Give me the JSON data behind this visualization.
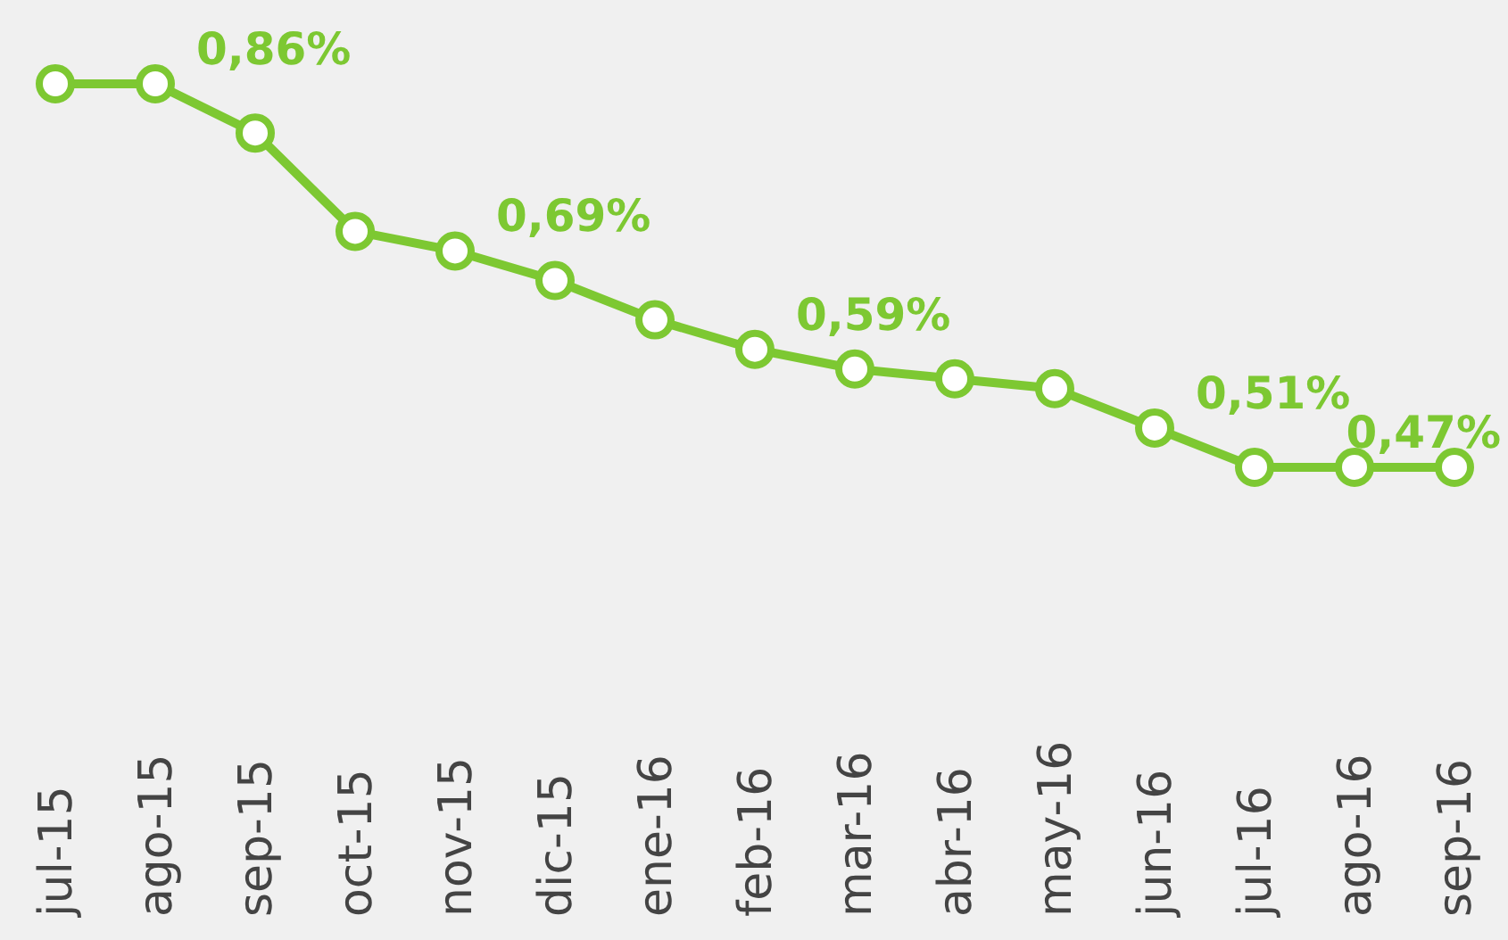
{
  "chart_data": {
    "type": "line",
    "categories": [
      "jul-15",
      "ago-15",
      "sep-15",
      "oct-15",
      "nov-15",
      "dic-15",
      "ene-16",
      "feb-16",
      "mar-16",
      "abr-16",
      "may-16",
      "jun-16",
      "jul-16",
      "ago-16",
      "sep-16"
    ],
    "series": [
      {
        "color": "#7dc832",
        "values": [
          0.86,
          0.86,
          0.81,
          0.71,
          0.69,
          0.66,
          0.62,
          0.59,
          0.57,
          0.56,
          0.55,
          0.51,
          0.47,
          0.47,
          0.47
        ],
        "value_labels": [
          null,
          "0,86%",
          null,
          null,
          "0,69%",
          null,
          null,
          "0,59%",
          null,
          null,
          null,
          "0,51%",
          null,
          null,
          "0,47%"
        ]
      }
    ],
    "marker": "circle",
    "line_style": "solid",
    "tick_labels": "x"
  }
}
